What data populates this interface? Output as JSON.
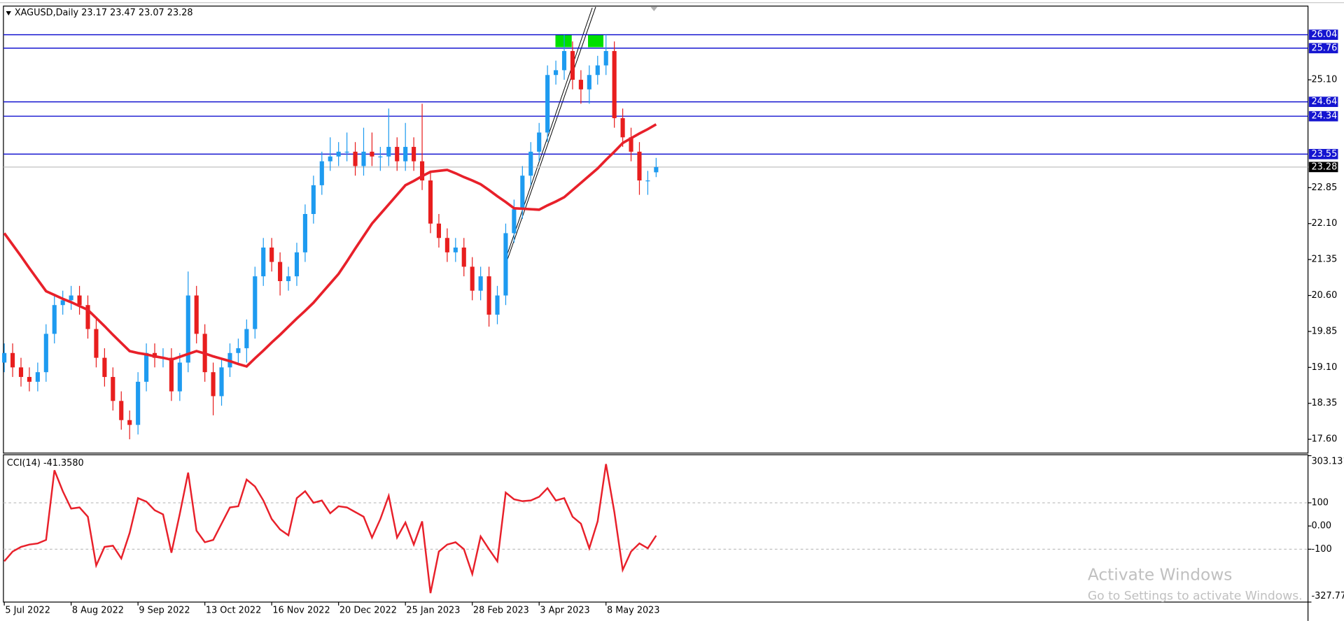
{
  "chart_data": [
    {
      "type": "candlestick",
      "title": "XAGUSD,Daily  23.17 23.47 23.07 23.28",
      "categories": [
        "5 Jul 2022",
        null,
        null,
        null,
        null,
        null,
        null,
        null,
        "8 Aug 2022",
        null,
        null,
        null,
        null,
        null,
        null,
        null,
        "9 Sep 2022",
        null,
        null,
        null,
        null,
        null,
        null,
        null,
        "13 Oct 2022",
        null,
        null,
        null,
        null,
        null,
        null,
        null,
        "16 Nov 2022",
        null,
        null,
        null,
        null,
        null,
        null,
        null,
        "20 Dec 2022",
        null,
        null,
        null,
        null,
        null,
        null,
        null,
        "25 Jan 2023",
        null,
        null,
        null,
        null,
        null,
        null,
        null,
        "28 Feb 2023",
        null,
        null,
        null,
        null,
        null,
        null,
        null,
        "3 Apr 2023",
        null,
        null,
        null,
        null,
        null,
        null,
        null,
        "8 May 2023",
        null,
        null,
        null,
        null,
        null,
        null
      ],
      "open": [
        19.2,
        19.4,
        19.1,
        18.9,
        18.8,
        19.0,
        19.8,
        20.4,
        20.5,
        20.6,
        20.4,
        19.9,
        19.3,
        18.9,
        18.4,
        18.0,
        17.9,
        18.8,
        19.4,
        19.3,
        19.3,
        18.6,
        19.2,
        20.6,
        19.8,
        19.0,
        18.5,
        19.1,
        19.4,
        19.5,
        19.9,
        21.0,
        21.6,
        21.3,
        20.9,
        21.0,
        21.5,
        22.3,
        22.9,
        23.4,
        23.5,
        23.6,
        23.6,
        23.3,
        23.6,
        23.5,
        23.5,
        23.7,
        23.4,
        23.7,
        23.4,
        23.0,
        22.1,
        21.8,
        21.5,
        21.6,
        21.2,
        20.7,
        21.0,
        20.2,
        20.6,
        21.9,
        22.4,
        23.1,
        23.6,
        24.0,
        25.2,
        25.3,
        25.7,
        25.1,
        24.9,
        25.2,
        25.4,
        25.7,
        24.3,
        23.9,
        23.6,
        23.0,
        23.17
      ],
      "high": [
        19.6,
        19.6,
        19.3,
        19.1,
        19.2,
        20.0,
        20.6,
        20.7,
        20.8,
        20.8,
        20.6,
        20.1,
        19.5,
        19.1,
        18.6,
        18.2,
        19.0,
        19.6,
        19.6,
        19.5,
        19.5,
        19.4,
        21.1,
        20.8,
        20.0,
        19.2,
        19.3,
        19.6,
        19.7,
        20.1,
        21.2,
        21.8,
        21.8,
        21.5,
        21.2,
        21.7,
        22.5,
        23.1,
        23.6,
        23.9,
        23.8,
        24.0,
        23.8,
        24.1,
        24.0,
        23.7,
        24.5,
        23.9,
        24.2,
        23.9,
        24.6,
        23.2,
        22.3,
        22.0,
        21.8,
        21.8,
        21.4,
        21.2,
        21.2,
        20.8,
        22.1,
        22.6,
        23.3,
        23.8,
        24.2,
        25.4,
        25.5,
        26.04,
        25.9,
        25.3,
        25.4,
        25.6,
        26.04,
        25.9,
        24.5,
        24.1,
        23.8,
        23.2,
        23.47
      ],
      "low": [
        19.0,
        18.9,
        18.7,
        18.6,
        18.6,
        18.8,
        19.6,
        20.2,
        20.3,
        20.2,
        19.7,
        19.1,
        18.7,
        18.2,
        17.8,
        17.6,
        17.7,
        18.6,
        19.1,
        19.1,
        18.4,
        18.4,
        19.0,
        19.6,
        18.8,
        18.1,
        18.3,
        18.9,
        19.2,
        19.2,
        19.7,
        20.8,
        21.1,
        20.6,
        20.7,
        20.8,
        21.3,
        22.1,
        22.7,
        23.2,
        23.3,
        23.4,
        23.1,
        23.1,
        23.3,
        23.2,
        23.3,
        23.2,
        23.2,
        23.2,
        22.8,
        21.9,
        21.6,
        21.3,
        21.3,
        21.0,
        20.5,
        20.5,
        19.95,
        20.0,
        20.4,
        21.7,
        22.2,
        22.9,
        23.4,
        23.8,
        25.0,
        25.1,
        24.9,
        24.6,
        24.6,
        25.0,
        25.2,
        24.1,
        23.7,
        23.4,
        22.7,
        22.7,
        23.07
      ],
      "close": [
        19.4,
        19.1,
        18.9,
        18.8,
        19.0,
        19.8,
        20.4,
        20.5,
        20.6,
        20.4,
        19.9,
        19.3,
        18.9,
        18.4,
        18.0,
        17.9,
        18.8,
        19.4,
        19.3,
        19.3,
        18.6,
        19.2,
        20.6,
        19.8,
        19.0,
        18.5,
        19.1,
        19.4,
        19.5,
        19.9,
        21.0,
        21.6,
        21.3,
        20.9,
        21.0,
        21.5,
        22.3,
        22.9,
        23.4,
        23.5,
        23.6,
        23.6,
        23.3,
        23.6,
        23.5,
        23.5,
        23.7,
        23.4,
        23.7,
        23.4,
        23.0,
        22.1,
        21.8,
        21.5,
        21.6,
        21.2,
        20.7,
        21.0,
        20.2,
        20.6,
        21.9,
        22.4,
        23.1,
        23.6,
        24.0,
        25.2,
        25.3,
        25.7,
        25.1,
        24.9,
        25.2,
        25.4,
        25.7,
        24.3,
        23.9,
        23.6,
        23.0,
        23.0,
        23.28
      ],
      "colors": {
        "up": "#1e9bf0",
        "down": "#e81e1e"
      },
      "ma": {
        "color": "#e8202a",
        "values": [
          21.9,
          21.66,
          21.42,
          21.17,
          20.93,
          20.69,
          20.61,
          20.53,
          20.46,
          20.38,
          20.3,
          20.13,
          19.96,
          19.78,
          19.61,
          19.44,
          19.4,
          19.37,
          19.33,
          19.3,
          19.26,
          19.32,
          19.38,
          19.44,
          19.39,
          19.33,
          19.28,
          19.23,
          19.17,
          19.12,
          19.29,
          19.45,
          19.62,
          19.78,
          19.95,
          20.12,
          20.28,
          20.45,
          20.65,
          20.85,
          21.05,
          21.31,
          21.58,
          21.84,
          22.1,
          22.3,
          22.5,
          22.7,
          22.9,
          22.99,
          23.09,
          23.18,
          23.2,
          23.22,
          23.15,
          23.07,
          23.0,
          22.92,
          22.8,
          22.67,
          22.55,
          22.42,
          22.41,
          22.4,
          22.39,
          22.48,
          22.56,
          22.65,
          22.8,
          22.95,
          23.1,
          23.25,
          23.43,
          23.6,
          23.78,
          23.88,
          23.98,
          24.07,
          24.17
        ]
      },
      "levels": [
        26.04,
        25.76,
        24.64,
        24.34,
        23.55
      ],
      "level_color": "#1515d0",
      "last_price": 23.28,
      "ylim": [
        17.33,
        26.62
      ],
      "yticks": [
        {
          "value": 25.1,
          "label": "25.10"
        },
        22.85,
        {
          "value": 22.1,
          "label": "22.10"
        },
        21.35,
        {
          "value": 20.6,
          "label": "20.60"
        },
        19.85,
        {
          "value": 19.1,
          "label": "19.10"
        },
        18.35,
        {
          "value": 17.6,
          "label": "17.60"
        }
      ]
    },
    {
      "type": "line",
      "title": "CCI(14) -41.3580",
      "color": "#e8202a",
      "values": [
        -152,
        -110,
        -90,
        -80,
        -75,
        -60,
        240,
        150,
        75,
        80,
        40,
        -170,
        -90,
        -85,
        -140,
        -30,
        120,
        105,
        68,
        50,
        -115,
        52,
        230,
        -20,
        -70,
        -60,
        10,
        80,
        85,
        200,
        170,
        110,
        30,
        -15,
        -40,
        120,
        150,
        100,
        110,
        55,
        85,
        80,
        60,
        40,
        -50,
        30,
        130,
        -50,
        15,
        -80,
        20,
        -289,
        -110,
        -80,
        -70,
        -100,
        -207,
        -45,
        -100,
        -152,
        144,
        115,
        107,
        110,
        126,
        163,
        110,
        120,
        40,
        10,
        -96,
        20,
        267,
        60,
        -189,
        -110,
        -75,
        -96,
        -41.358
      ],
      "levels": [
        100,
        -100
      ],
      "ylim": [
        -327.77,
        303.131
      ],
      "yticks": [
        303.131,
        100,
        {
          "value": 0,
          "label": "0.00"
        },
        -100,
        {
          "value": -327.77,
          "label": "-327.770"
        }
      ]
    }
  ],
  "watermark": {
    "line1": "Activate Windows",
    "line2": "Go to Settings to activate Windows."
  }
}
